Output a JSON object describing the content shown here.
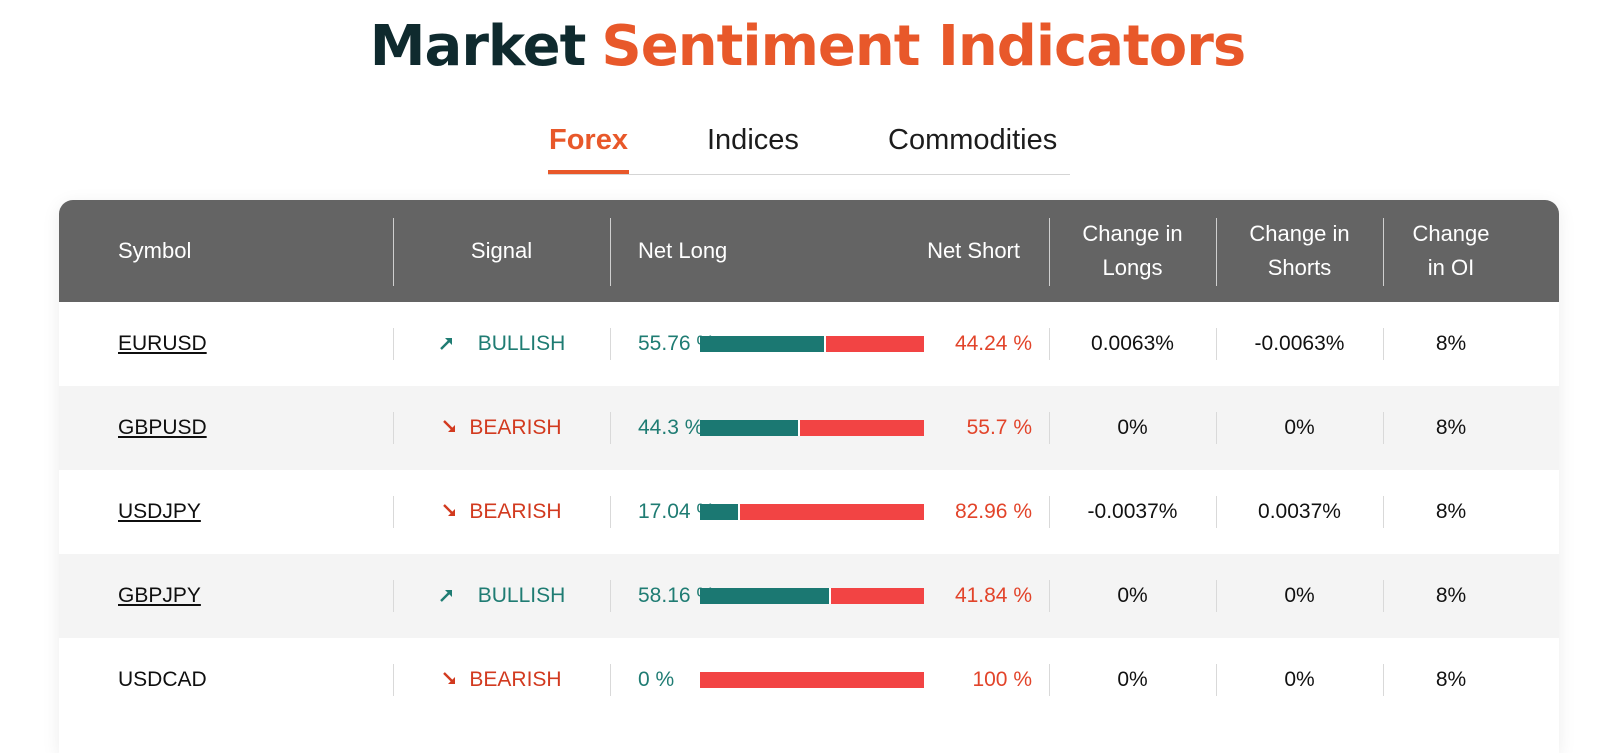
{
  "title": {
    "part1": "Market",
    "part2": "Sentiment Indicators"
  },
  "tabs": [
    {
      "label": "Forex",
      "active": true
    },
    {
      "label": "Indices",
      "active": false
    },
    {
      "label": "Commodities",
      "active": false
    }
  ],
  "table": {
    "headers": {
      "symbol": "Symbol",
      "signal": "Signal",
      "net_long": "Net Long",
      "net_short": "Net Short",
      "change_longs_1": "Change in",
      "change_longs_2": "Longs",
      "change_shorts_1": "Change in",
      "change_shorts_2": "Shorts",
      "change_oi_1": "Change",
      "change_oi_2": "in OI"
    },
    "rows": [
      {
        "symbol": "EURUSD",
        "link": true,
        "signal": "BULLISH",
        "direction": "up",
        "net_long": "55.76 %",
        "net_short": "44.24 %",
        "long_fraction": 0.5576,
        "change_longs": "0.0063%",
        "change_shorts": "-0.0063%",
        "change_oi": "8%"
      },
      {
        "symbol": "GBPUSD",
        "link": true,
        "signal": "BEARISH",
        "direction": "down",
        "net_long": "44.3 %",
        "net_short": "55.7 %",
        "long_fraction": 0.443,
        "change_longs": "0%",
        "change_shorts": "0%",
        "change_oi": "8%"
      },
      {
        "symbol": "USDJPY",
        "link": true,
        "signal": "BEARISH",
        "direction": "down",
        "net_long": "17.04 %",
        "net_short": "82.96 %",
        "long_fraction": 0.1704,
        "change_longs": "-0.0037%",
        "change_shorts": "0.0037%",
        "change_oi": "8%"
      },
      {
        "symbol": "GBPJPY",
        "link": true,
        "signal": "BULLISH",
        "direction": "up",
        "net_long": "58.16 %",
        "net_short": "41.84 %",
        "long_fraction": 0.5816,
        "change_longs": "0%",
        "change_shorts": "0%",
        "change_oi": "8%"
      },
      {
        "symbol": "USDCAD",
        "link": false,
        "signal": "BEARISH",
        "direction": "down",
        "net_long": "0 %",
        "net_short": "100 %",
        "long_fraction": 0,
        "change_longs": "0%",
        "change_shorts": "0%",
        "change_oi": "8%"
      }
    ]
  },
  "colors": {
    "accent": "#e8582a",
    "title_dark": "#0f2a2e",
    "header_bg": "#646464",
    "bullish": "#1f7c73",
    "bearish": "#d23a1f",
    "bar_long": "#1b7872",
    "bar_short": "#f24444",
    "row_alt": "#f4f4f4"
  },
  "icons": {
    "up": "arrow-up-right-icon",
    "down": "arrow-down-right-icon"
  }
}
